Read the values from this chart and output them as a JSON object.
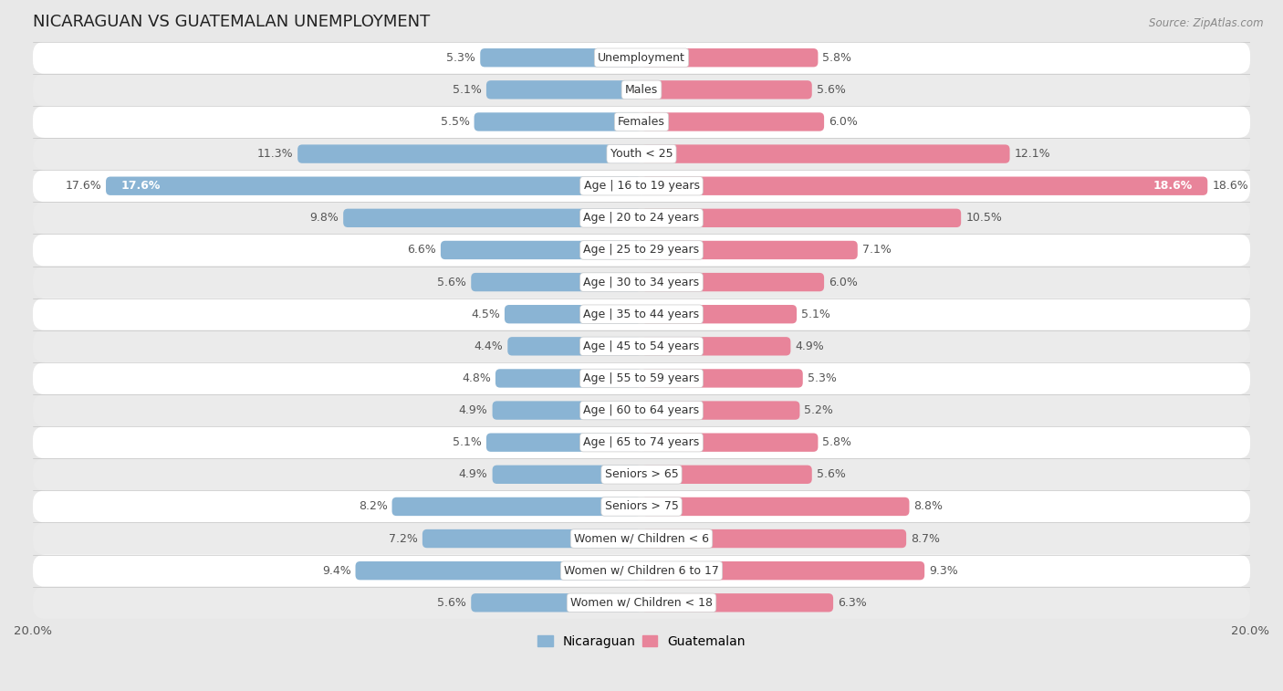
{
  "title": "NICARAGUAN VS GUATEMALAN UNEMPLOYMENT",
  "source": "Source: ZipAtlas.com",
  "categories": [
    "Unemployment",
    "Males",
    "Females",
    "Youth < 25",
    "Age | 16 to 19 years",
    "Age | 20 to 24 years",
    "Age | 25 to 29 years",
    "Age | 30 to 34 years",
    "Age | 35 to 44 years",
    "Age | 45 to 54 years",
    "Age | 55 to 59 years",
    "Age | 60 to 64 years",
    "Age | 65 to 74 years",
    "Seniors > 65",
    "Seniors > 75",
    "Women w/ Children < 6",
    "Women w/ Children 6 to 17",
    "Women w/ Children < 18"
  ],
  "nicaraguan": [
    5.3,
    5.1,
    5.5,
    11.3,
    17.6,
    9.8,
    6.6,
    5.6,
    4.5,
    4.4,
    4.8,
    4.9,
    5.1,
    4.9,
    8.2,
    7.2,
    9.4,
    5.6
  ],
  "guatemalan": [
    5.8,
    5.6,
    6.0,
    12.1,
    18.6,
    10.5,
    7.1,
    6.0,
    5.1,
    4.9,
    5.3,
    5.2,
    5.8,
    5.6,
    8.8,
    8.7,
    9.3,
    6.3
  ],
  "nicaraguan_color": "#8ab4d4",
  "guatemalan_color": "#e8849a",
  "background_color": "#e8e8e8",
  "row_bg_white": "#ffffff",
  "row_bg_gray": "#ebebeb",
  "max_val": 20.0,
  "bar_height": 0.58,
  "label_fontsize": 9.0,
  "title_fontsize": 13,
  "legend_fontsize": 10,
  "value_label_color": "#555555",
  "white_label_color": "#ffffff",
  "category_label_fontsize": 9.0
}
